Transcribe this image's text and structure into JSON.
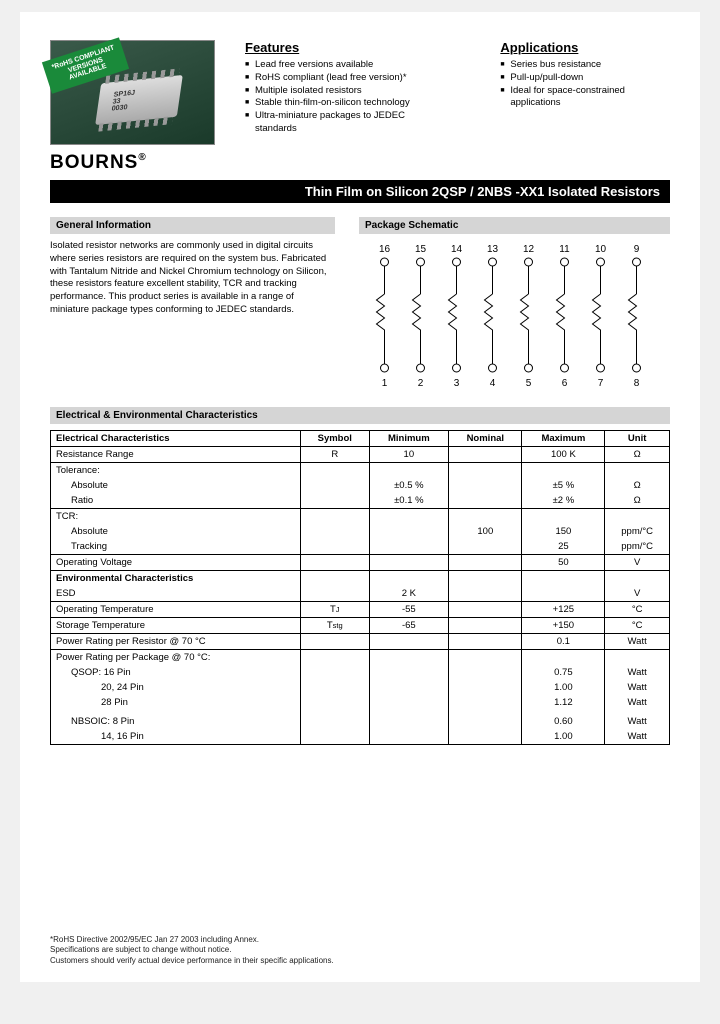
{
  "rohs_banner": "*RoHS COMPLIANT\nVERSIONS\nAVAILABLE",
  "ic_label": "SP16J\n33\n0030",
  "brand": "BOURNS",
  "features": {
    "title": "Features",
    "items": [
      "Lead free versions available",
      "RoHS compliant (lead free version)*",
      "Multiple isolated resistors",
      "Stable thin-film-on-silicon technology",
      "Ultra-miniature packages to JEDEC standards"
    ]
  },
  "applications": {
    "title": "Applications",
    "items": [
      "Series bus resistance",
      "Pull-up/pull-down",
      "Ideal for space-constrained applications"
    ]
  },
  "title_bar": "Thin Film on Silicon 2QSP / 2NBS -XX1 Isolated Resistors",
  "gen_info": {
    "head": "General Information",
    "body": "Isolated resistor networks are commonly used in digital circuits where series resistors are required on the system bus. Fabricated with Tantalum Nitride and Nickel Chromium technology on Silicon, these resistors feature excellent stability, TCR and tracking performance. This product series is available in a range of miniature package types conforming to JEDEC standards."
  },
  "schematic": {
    "head": "Package Schematic",
    "top_pins": [
      "16",
      "15",
      "14",
      "13",
      "12",
      "11",
      "10",
      "9"
    ],
    "bot_pins": [
      "1",
      "2",
      "3",
      "4",
      "5",
      "6",
      "7",
      "8"
    ]
  },
  "char_head": "Electrical & Environmental Characteristics",
  "table": {
    "headers": [
      "Electrical Characteristics",
      "Symbol",
      "Minimum",
      "Nominal",
      "Maximum",
      "Unit"
    ],
    "rows": [
      {
        "c": [
          "Resistance Range",
          "R",
          "10",
          "",
          "100 K",
          "Ω"
        ],
        "border": true
      },
      {
        "c": [
          "Tolerance:",
          "",
          "",
          "",
          "",
          ""
        ],
        "border": false,
        "top": true
      },
      {
        "c": [
          "Absolute",
          "",
          "±0.5 %",
          "",
          "±5 %",
          "Ω"
        ],
        "border": false,
        "ind": 1
      },
      {
        "c": [
          "Ratio",
          "",
          "±0.1 %",
          "",
          "±2 %",
          "Ω"
        ],
        "border": false,
        "ind": 1,
        "bot": true
      },
      {
        "c": [
          "TCR:",
          "",
          "",
          "",
          "",
          ""
        ],
        "border": false,
        "top": true
      },
      {
        "c": [
          "Absolute",
          "",
          "",
          "100",
          "150",
          "ppm/°C"
        ],
        "border": false,
        "ind": 1
      },
      {
        "c": [
          "Tracking",
          "",
          "",
          "",
          "25",
          "ppm/°C"
        ],
        "border": false,
        "ind": 1,
        "bot": true
      },
      {
        "c": [
          "Operating Voltage",
          "",
          "",
          "",
          "50",
          "V"
        ],
        "border": true
      },
      {
        "c": [
          "Environmental Characteristics",
          "",
          "",
          "",
          "",
          ""
        ],
        "border": false,
        "bold": true,
        "top": true
      },
      {
        "c": [
          "ESD",
          "",
          "2 K",
          "",
          "",
          "V"
        ],
        "border": false,
        "bot": true
      },
      {
        "c": [
          "Operating Temperature",
          "TJ",
          "-55",
          "",
          "+125",
          "°C"
        ],
        "border": true,
        "sub": true
      },
      {
        "c": [
          "Storage Temperature",
          "Tstg",
          "-65",
          "",
          "+150",
          "°C"
        ],
        "border": true,
        "sub": true
      },
      {
        "c": [
          "Power Rating per Resistor @ 70 °C",
          "",
          "",
          "",
          "0.1",
          "Watt"
        ],
        "border": true
      },
      {
        "c": [
          "Power Rating per Package @ 70 °C:",
          "",
          "",
          "",
          "",
          ""
        ],
        "border": false,
        "top": true
      },
      {
        "c": [
          "QSOP:   16 Pin",
          "",
          "",
          "",
          "0.75",
          "Watt"
        ],
        "border": false,
        "ind": 1
      },
      {
        "c": [
          "20, 24 Pin",
          "",
          "",
          "",
          "1.00",
          "Watt"
        ],
        "border": false,
        "ind": 2
      },
      {
        "c": [
          "28 Pin",
          "",
          "",
          "",
          "1.12",
          "Watt"
        ],
        "border": false,
        "ind": 2
      },
      {
        "c": [
          " ",
          "",
          "",
          "",
          "",
          ""
        ],
        "border": false
      },
      {
        "c": [
          "NBSOIC: 8 Pin",
          "",
          "",
          "",
          "0.60",
          "Watt"
        ],
        "border": false,
        "ind": 1
      },
      {
        "c": [
          "14, 16 Pin",
          "",
          "",
          "",
          "1.00",
          "Watt"
        ],
        "border": false,
        "ind": 2,
        "bot": true
      }
    ]
  },
  "footnotes": [
    "*RoHS Directive 2002/95/EC Jan 27 2003 including Annex.",
    "Specifications are subject to change without notice.",
    "Customers should verify actual device performance in their specific applications."
  ]
}
